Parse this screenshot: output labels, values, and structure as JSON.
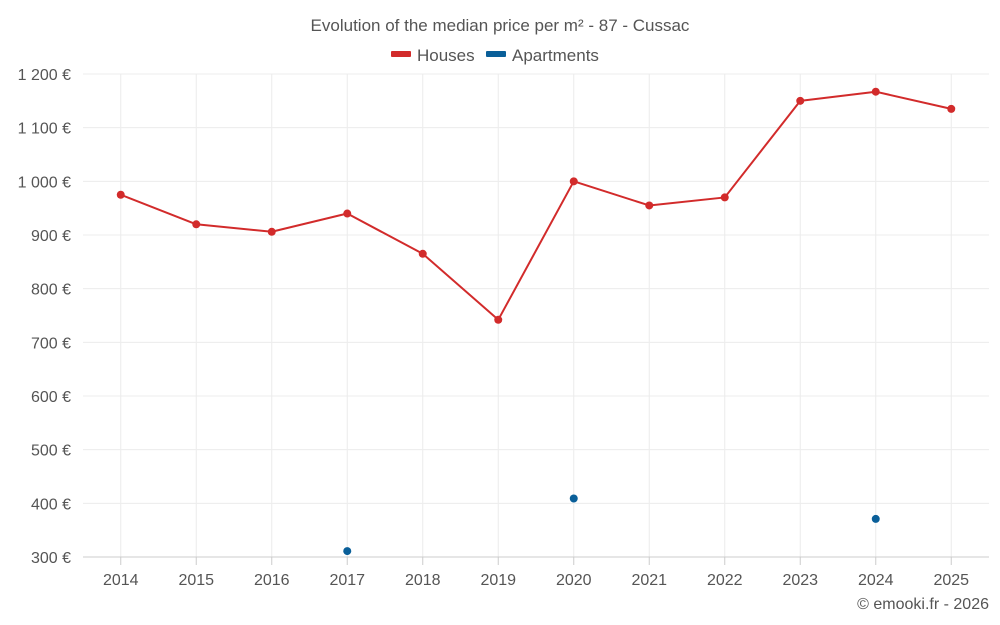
{
  "chart_data": {
    "type": "line",
    "title": "Evolution of the median price per m² - 87 - Cussac",
    "categories": [
      "2014",
      "2015",
      "2016",
      "2017",
      "2018",
      "2019",
      "2020",
      "2021",
      "2022",
      "2023",
      "2024",
      "2025"
    ],
    "y_tick_labels": [
      "300 €",
      "400 €",
      "500 €",
      "600 €",
      "700 €",
      "800 €",
      "900 €",
      "1 000 €",
      "1 100 €",
      "1 200 €"
    ],
    "y_ticks": [
      300,
      400,
      500,
      600,
      700,
      800,
      900,
      1000,
      1100,
      1200
    ],
    "ylim": [
      300,
      1200
    ],
    "xlabel": "",
    "ylabel": "",
    "grid": true,
    "legend_position": "top-center",
    "series": [
      {
        "name": "Houses",
        "color": "#d22b2b",
        "values": [
          975,
          920,
          906,
          940,
          865,
          742,
          1000,
          955,
          970,
          1150,
          1167,
          1135
        ],
        "connected": true
      },
      {
        "name": "Apartments",
        "color": "#0a5f99",
        "values": [
          null,
          null,
          null,
          311,
          null,
          null,
          409,
          null,
          null,
          null,
          371,
          null
        ],
        "connected": false
      }
    ]
  },
  "credit": "© emooki.fr - 2026"
}
